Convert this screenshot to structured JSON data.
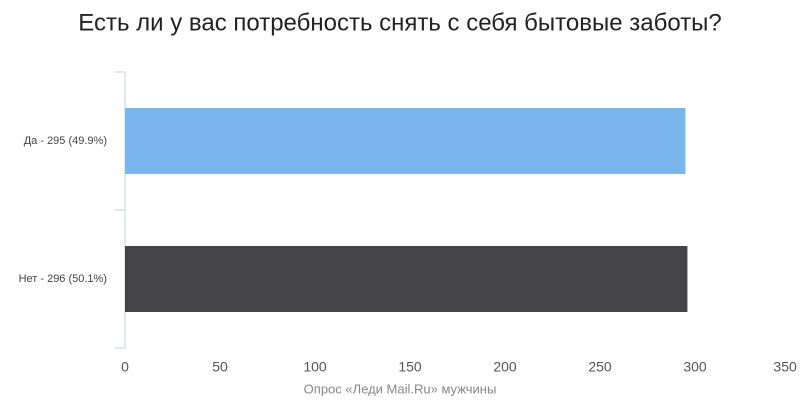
{
  "chart_data": {
    "type": "hbar",
    "title": "Есть ли у вас потребность снять с себя бытовые заботы?",
    "categories": [
      "Да - 295 (49.9%)",
      "Нет - 296 (50.1%)"
    ],
    "values": [
      295,
      296
    ],
    "colors": [
      "#7cb5ec",
      "#434348"
    ],
    "xlabel": "Опрос «Леди Mail.Ru» мужчины",
    "xlim": [
      0,
      350
    ],
    "xticks": [
      0,
      50,
      100,
      150,
      200,
      250,
      300,
      350
    ],
    "grid": false
  }
}
